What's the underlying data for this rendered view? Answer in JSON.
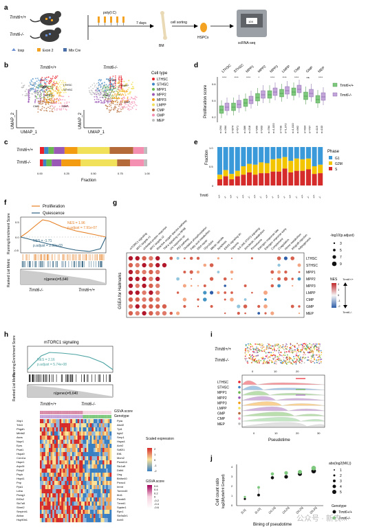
{
  "panel_labels": [
    "a",
    "b",
    "c",
    "d",
    "e",
    "f",
    "g",
    "h",
    "i",
    "j"
  ],
  "panel_a": {
    "genotypes": [
      "Trmt6+/+",
      "Trmt6-/-"
    ],
    "legend": [
      "loxp",
      "Exon 2",
      "Mix Cre"
    ],
    "treatment": "poly(I:C)",
    "time": "7 days",
    "step_bm": "BM",
    "step_sort": "cell sorting",
    "step_hspc": "HSPCs",
    "step_seq": "scRNA-seq",
    "chip_label": "10X"
  },
  "panel_b": {
    "titles": [
      "Trmt6+/+",
      "Trmt6-/-"
    ],
    "x_axis": "UMAP_1",
    "y_axis": "UMAP_2",
    "legend_title": "Cell type",
    "cell_types": [
      {
        "name": "LTHSC",
        "color": "#e8202a"
      },
      {
        "name": "STHSC",
        "color": "#3e86c6"
      },
      {
        "name": "MPP1",
        "color": "#6ab84e"
      },
      {
        "name": "MPP2",
        "color": "#9b59b6"
      },
      {
        "name": "MPP3",
        "color": "#f39c12"
      },
      {
        "name": "LMPP",
        "color": "#f1e05a"
      },
      {
        "name": "CMP",
        "color": "#b56a3a"
      },
      {
        "name": "GMP",
        "color": "#f48fb1"
      },
      {
        "name": "MEP",
        "color": "#bdbdbd"
      }
    ],
    "cluster_labels": [
      "LTHSC",
      "STHSC",
      "MPP1",
      "MPP2",
      "MPP3",
      "LMPP",
      "CMP",
      "GMP",
      "MEP"
    ]
  },
  "panel_c": {
    "rows": [
      "Trmt6+/+",
      "Trmt6-/-"
    ],
    "x_axis": "Fraction",
    "ticks": [
      "0.00",
      "0.25",
      "0.50",
      "0.75",
      "1.00"
    ]
  },
  "panel_d": {
    "y_axis": "Proliferation score",
    "categories": [
      "LTHSC",
      "STHSC",
      "MPP1",
      "MPP2",
      "MPP3",
      "LMPP",
      "CMP",
      "GMP",
      "MEP"
    ],
    "significance": [
      "****",
      "****",
      "****",
      "*",
      "****",
      "****",
      "****",
      "ns",
      "****"
    ],
    "n_counts": [
      [
        "n=264",
        "n=284"
      ],
      [
        "n=874",
        "n=671"
      ],
      [
        "n=386",
        "n=218"
      ],
      [
        "n=969",
        "n=903"
      ],
      [
        "n=784",
        "n=1,020"
      ],
      [
        "n=739",
        "n=1,072"
      ],
      [
        "n=1,010",
        "n=962"
      ],
      [
        "n=404",
        "n=767"
      ],
      [
        "n=119",
        "n=103"
      ]
    ],
    "legend": [
      "Trmt6+/+",
      "Trmt6-/-"
    ],
    "y_ticks": [
      "0.2",
      "0.4",
      "0.6"
    ]
  },
  "panel_e": {
    "y_axis": "Fraction",
    "legend_title": "Phase",
    "phases": [
      {
        "name": "G1",
        "color": "#3a9ad9"
      },
      {
        "name": "G2M",
        "color": "#f2c500"
      },
      {
        "name": "S",
        "color": "#d62b2b"
      }
    ],
    "genotype_label": "Trmt6",
    "genotype_ticks": [
      "+/+",
      "-/-"
    ],
    "y_ticks": [
      "0",
      "0.5",
      "1.0"
    ]
  },
  "panel_f": {
    "legend": [
      {
        "name": "Proliferation",
        "color": "#e67e22"
      },
      {
        "name": "Quiescence",
        "color": "#2b5f7e"
      }
    ],
    "y_axis": "Running Enrichment Score",
    "y_axis2": "Ranked List Metric",
    "stats_prolif": [
      "NES = 1.96",
      "p.adjust = 7.91e-07"
    ],
    "stats_quies": [
      "NES = -1.71",
      "p.adjust = 2.90e-03"
    ],
    "n_genes": "n(genes)=5,640",
    "x_left": "Trmt6-/-",
    "x_right": "Trmt6+/+",
    "y_ticks": [
      "0.5",
      "0.0",
      "-0.5"
    ]
  },
  "panel_g": {
    "y_axis": "GSEA for Hallmarks",
    "pathways": [
      "mTORC1 signaling",
      "MYC targets v1",
      "Unfolded protein response",
      "MYC targets v2",
      "Reactive oxygen species pathway",
      "TNFa signaling via NFkB",
      "UV response up",
      "P53 pathway",
      "Oxidative phosphorylation",
      "Fatty acid metabolism",
      "DNA repair",
      "Glycolysis",
      "Mitotic spindle",
      "Apoptosis",
      "KRAS signaling dn",
      "Hypoxia",
      "IL6-JAK-STAT3 signaling",
      "Xenobiotic metabolism",
      "Peroxisome",
      "Estrogen response late",
      "Estrogen response early",
      "Complement",
      "Coagulation",
      "Heme metabolism",
      "Allograft rejection",
      "Adipogenesis"
    ],
    "cell_types": [
      "LTHSC",
      "STHSC",
      "MPP1",
      "MPP2",
      "MPP3",
      "LMPP",
      "CMP",
      "GMP",
      "MEP"
    ],
    "size_legend_title": "-log10(p.adjust)",
    "size_legend": [
      "3",
      "5",
      "7",
      "9"
    ],
    "color_legend_title": "NES",
    "color_top": "Trmt6+/+",
    "color_bottom": "Trmt6-/-",
    "color_ticks": [
      "2",
      "1",
      "0",
      "-1",
      "-2"
    ]
  },
  "panel_h": {
    "title": "mTORC1 signaling",
    "stats": [
      "NES = 2.16",
      "p.adjust = 5.74e-08"
    ],
    "n_genes": "n(genes)=5,640",
    "y_axis": "Running Enrichment Score",
    "y_axis2": "Ranked List Metric",
    "x_left": "Trmt6+/+",
    "x_right": "Trmt6-/-",
    "heat_top_labels": [
      "GSVA score",
      "Genotype"
    ],
    "genes_left": [
      "Xbp1",
      "Trib3",
      "Phgdh",
      "Mthfd2",
      "Asns",
      "Nupr1",
      "Eprs",
      "Psat1",
      "Hspa9",
      "Coro1a",
      "Hspe1",
      "Arpc5l",
      "Fkbp2",
      "Psph",
      "Hspd1",
      "Pnp",
      "Ppa1",
      "Ldha",
      "Psmg1",
      "Eif2s2",
      "Slc7a5",
      "Shmt2",
      "Serpinh1",
      "Aldoa",
      "Hsp90b1"
    ],
    "genes_right": [
      "Ppia",
      "Abcf2",
      "Tpi1",
      "Itgb2",
      "Serp1",
      "Hspa4",
      "Actr2",
      "Sdf2l1",
      "Elf1",
      "Mcm2",
      "Psmd14",
      "Slc1a5",
      "Ddit4",
      "Ung",
      "Bhlhe40",
      "Psmc4",
      "Immt",
      "Tomm40",
      "Ifrd1",
      "Psmb5",
      "Txnrd1",
      "Sqstm1",
      "Rpn1",
      "Slc9a3r1",
      "Actr3"
    ],
    "scaled_title": "Scaled expression",
    "scaled_ticks": [
      "2",
      "1",
      "0",
      "-1",
      "-2"
    ],
    "gsva_title": "GSVA score",
    "gsva_ticks": [
      "0.6",
      "0.4",
      "0.2",
      "0",
      "-0.2",
      "-0.4",
      "-0.6"
    ]
  },
  "panel_i": {
    "strip_rows": [
      "Trmt6+/+",
      "Trmt6-/-"
    ],
    "x_axis": "Pseudotime",
    "ridge_rows": [
      "LTHSC",
      "STHSC",
      "MPP1",
      "MPP2",
      "MPP3",
      "LMPP",
      "GMP",
      "CMP",
      "MEP"
    ],
    "ticks_top": [
      "0",
      "10",
      "20"
    ],
    "ticks_bottom": [
      "0",
      "10",
      "20",
      "30"
    ]
  },
  "panel_j": {
    "y_axis": "Cell count ratio",
    "y_axis2": "log2(Mydaf/rit Gmppd)",
    "x_axis": "Bining of pseudotime",
    "bins": [
      "[0,5]",
      "(5,10]",
      "(10,15]",
      "(15,20]",
      "(20,25]",
      "(25,30]"
    ],
    "y_ticks": [
      "0",
      "1",
      "2",
      "3",
      "4"
    ],
    "size_legend_title": "abs(log2(M/L))",
    "size_legend": [
      "1",
      "2",
      "3",
      "4",
      "5"
    ],
    "genotype_legend_title": "Genotype",
    "genotype_legend": [
      "Trmt6+/+",
      "Trmt6-/-"
    ]
  },
  "watermark": "公众号 · 新农..."
}
